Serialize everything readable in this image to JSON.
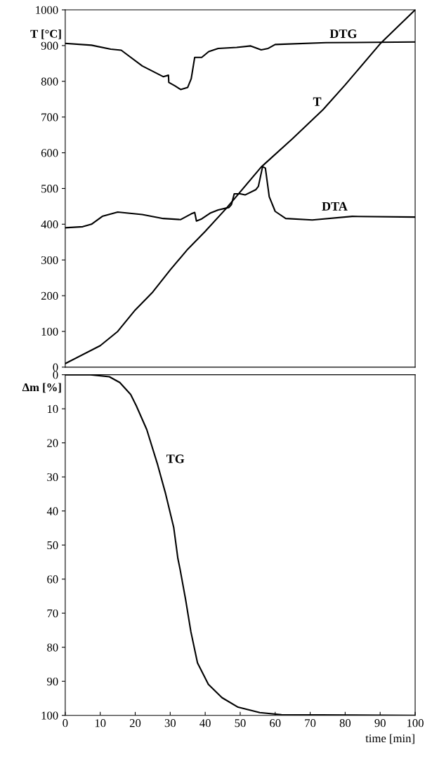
{
  "chart_data": [
    {
      "type": "line",
      "ylabel": "T [°C]",
      "xlim": [
        0,
        100
      ],
      "ylim": [
        0,
        1000
      ],
      "yticks": [
        0,
        100,
        200,
        300,
        400,
        500,
        600,
        700,
        800,
        900,
        1000
      ],
      "tick_labels": "y",
      "grid": false,
      "legend": false,
      "marker": "none",
      "line_style": "solid",
      "series": [
        {
          "name": "DTG",
          "color": "#000000",
          "x": [
            0,
            7.5,
            13,
            16,
            22,
            28,
            29.5,
            29.6,
            31.4,
            33,
            35,
            36,
            37,
            39,
            41,
            43.7,
            49,
            53,
            56,
            58,
            60,
            74.5,
            100
          ],
          "values": [
            906,
            901,
            890,
            887,
            843,
            813,
            817,
            797,
            787,
            777,
            783,
            807,
            867,
            867,
            883,
            892,
            895,
            899,
            888,
            892,
            903,
            908,
            910
          ]
        },
        {
          "name": "T",
          "color": "#000000",
          "x": [
            0,
            10,
            15,
            20,
            25,
            30,
            35,
            40,
            46,
            56,
            65,
            73.7,
            80,
            90,
            100
          ],
          "values": [
            10,
            60,
            100,
            160,
            210,
            272,
            330,
            380,
            444,
            560,
            640,
            721,
            790,
            905,
            1000
          ]
        },
        {
          "name": "DTA",
          "color": "#000000",
          "x": [
            0,
            5,
            7.5,
            10.6,
            15,
            22,
            28,
            33,
            36,
            37,
            37.5,
            39,
            41.4,
            43.7,
            46.8,
            47.5,
            48.3,
            50,
            51.4,
            54.5,
            55.2,
            56.4,
            57.2,
            58.3,
            60,
            63,
            70.6,
            82,
            100
          ],
          "values": [
            390,
            393,
            400,
            422,
            434,
            427,
            416,
            413,
            429,
            433,
            409,
            415,
            431,
            440,
            447,
            455,
            485,
            485,
            482,
            497,
            506,
            561,
            557,
            477,
            436,
            416,
            412,
            422,
            420
          ]
        }
      ]
    },
    {
      "type": "line",
      "ylabel": "Δm [%]",
      "xlabel": "time [min]",
      "xlim": [
        0,
        100
      ],
      "xticks": [
        0,
        10,
        20,
        30,
        40,
        50,
        60,
        70,
        80,
        90,
        100
      ],
      "ylim": [
        100,
        0
      ],
      "yticks": [
        0,
        10,
        20,
        30,
        40,
        50,
        60,
        70,
        80,
        90,
        100
      ],
      "grid": false,
      "legend": false,
      "marker": "none",
      "line_style": "solid",
      "series": [
        {
          "name": "TG",
          "color": "#000000",
          "x": [
            0,
            7.2,
            12.6,
            15.6,
            18.7,
            20.3,
            23.3,
            26.4,
            28.7,
            31,
            32.2,
            32.8,
            34.4,
            35.9,
            37.8,
            40.9,
            44.8,
            49.4,
            55.6,
            61.8,
            100
          ],
          "values": [
            0,
            0,
            0.6,
            2.3,
            5.8,
            9.1,
            16.1,
            26.4,
            35,
            44.8,
            54,
            57,
            66,
            75.4,
            84.6,
            90.9,
            94.8,
            97.6,
            99.2,
            99.8,
            100
          ]
        }
      ]
    }
  ]
}
